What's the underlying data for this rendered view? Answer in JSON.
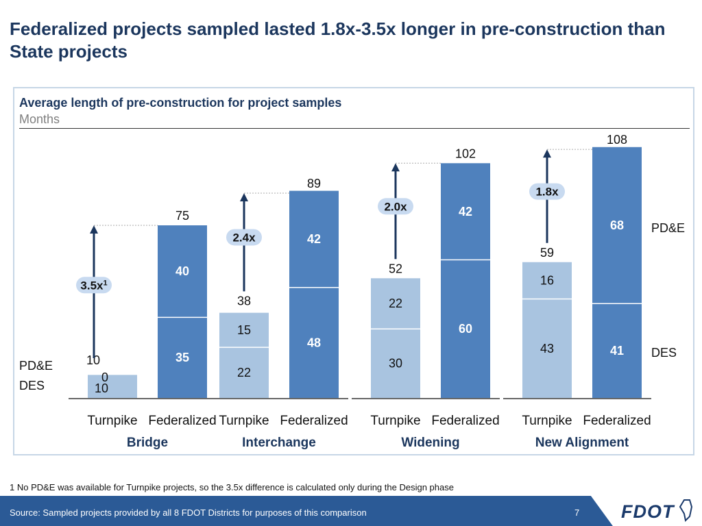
{
  "page": {
    "title": "Federalized projects sampled lasted 1.8x-3.5x longer in pre-construction than State projects",
    "footnote": "1 No PD&E was available for Turnpike projects, so the 3.5x difference is calculated only during the Design phase",
    "source": "Source: Sampled projects provided by all 8 FDOT Districts for purposes of this comparison",
    "page_number": "7",
    "logo_text": "FDOT",
    "colors": {
      "title": "#1b365d",
      "turnpike": "#a9c4e0",
      "federalized": "#4f81bd",
      "footer": "#2b5a96",
      "badge": "#c8daf0"
    }
  },
  "chart_data": {
    "type": "bar",
    "stacked": true,
    "title": "Average length of pre-construction for project samples",
    "ylabel": "Months",
    "series_labels": {
      "top": "PD&E",
      "bottom": "DES"
    },
    "series_side_labels": {
      "left_top": "PD&E",
      "left_bottom": "DES",
      "right_top": "PD&E",
      "right_bottom": "DES"
    },
    "categories": [
      "Bridge",
      "Interchange",
      "Widening",
      "New Alignment"
    ],
    "bar_names": [
      "Turnpike",
      "Federalized"
    ],
    "ylim": [
      0,
      108
    ],
    "groups": [
      {
        "category": "Bridge",
        "ratio": "3.5x",
        "ratio_note": "1",
        "bars": [
          {
            "name": "Turnpike",
            "des": 10,
            "pde": 0,
            "total": 10
          },
          {
            "name": "Federalized",
            "des": 35,
            "pde": 40,
            "total": 75
          }
        ]
      },
      {
        "category": "Interchange",
        "ratio": "2.4x",
        "ratio_note": "",
        "bars": [
          {
            "name": "Turnpike",
            "des": 22,
            "pde": 15,
            "total": 38
          },
          {
            "name": "Federalized",
            "des": 48,
            "pde": 42,
            "total": 89
          }
        ]
      },
      {
        "category": "Widening",
        "ratio": "2.0x",
        "ratio_note": "",
        "bars": [
          {
            "name": "Turnpike",
            "des": 30,
            "pde": 22,
            "total": 52
          },
          {
            "name": "Federalized",
            "des": 60,
            "pde": 42,
            "total": 102
          }
        ]
      },
      {
        "category": "New Alignment",
        "ratio": "1.8x",
        "ratio_note": "",
        "bars": [
          {
            "name": "Turnpike",
            "des": 43,
            "pde": 16,
            "total": 59
          },
          {
            "name": "Federalized",
            "des": 41,
            "pde": 68,
            "total": 108
          }
        ]
      }
    ]
  }
}
